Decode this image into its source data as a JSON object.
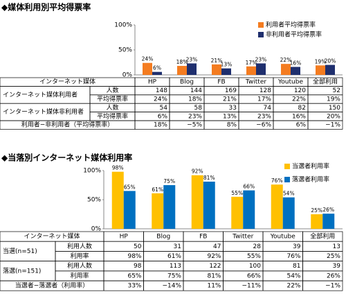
{
  "chart_data": [
    {
      "type": "bar",
      "title": "◆媒体利用別平均得票率",
      "categories": [
        "HP",
        "Blog",
        "FB",
        "Twitter",
        "Youtube",
        "全部利用"
      ],
      "series": [
        {
          "name": "利用者平均得票率",
          "color": "#f47c20",
          "values": [
            24,
            18,
            21,
            17,
            22,
            19
          ],
          "value_labels": [
            "24%",
            "18%",
            "21%",
            "17%",
            "22%",
            "19%"
          ]
        },
        {
          "name": "非利用者平均得票率",
          "color": "#1f2f6e",
          "values": [
            6,
            23,
            13,
            23,
            16,
            20
          ],
          "value_labels": [
            "6%",
            "23%",
            "13%",
            "23%",
            "16%",
            "20%"
          ]
        }
      ],
      "ylim": [
        0,
        100
      ],
      "yticks": [
        {
          "value": 0,
          "label": "0%"
        },
        {
          "value": 50,
          "label": "50%"
        },
        {
          "value": 100,
          "label": "100%"
        }
      ],
      "grid": false,
      "legend": "upper right"
    },
    {
      "type": "bar",
      "title": "◆当落別インターネット媒体利用率",
      "categories": [
        "HP",
        "Blog",
        "FB",
        "Twitter",
        "Youtube",
        "全部利用"
      ],
      "series": [
        {
          "name": "当選者利用率",
          "color": "#ffc000",
          "values": [
            98,
            61,
            92,
            55,
            76,
            25
          ],
          "value_labels": [
            "98%",
            "61%",
            "92%",
            "55%",
            "76%",
            "25%"
          ]
        },
        {
          "name": "落選者利用率",
          "color": "#0070c0",
          "values": [
            65,
            75,
            81,
            66,
            54,
            26
          ],
          "value_labels": [
            "65%",
            "75%",
            "81%",
            "66%",
            "54%",
            "26%"
          ]
        }
      ],
      "ylim": [
        0,
        100
      ],
      "yticks": [
        {
          "value": 0,
          "label": "0%"
        },
        {
          "value": 50,
          "label": "50%"
        },
        {
          "value": 100,
          "label": "100%"
        }
      ],
      "grid": false,
      "legend": "upper right"
    }
  ],
  "tables": [
    {
      "header": [
        "インターネット媒体",
        "HP",
        "Blog",
        "FB",
        "Twitter",
        "Youtube",
        "全部利用"
      ],
      "groups": [
        {
          "label": "インターネット媒体利用者",
          "rows": [
            {
              "label": "人数",
              "cells": [
                "148",
                "144",
                "169",
                "128",
                "120",
                "52"
              ]
            },
            {
              "label": "平均得票率",
              "cells": [
                "24%",
                "18%",
                "21%",
                "17%",
                "22%",
                "19%"
              ]
            }
          ]
        },
        {
          "label": "インターネット媒体非利用者",
          "rows": [
            {
              "label": "人数",
              "cells": [
                "54",
                "58",
                "33",
                "74",
                "82",
                "150"
              ]
            },
            {
              "label": "平均得票率",
              "cells": [
                "6%",
                "23%",
                "13%",
                "23%",
                "16%",
                "20%"
              ]
            }
          ]
        }
      ],
      "footer": {
        "label": "利用者−非利用者（平均得票率）",
        "cells": [
          "18%",
          "−5%",
          "8%",
          "−6%",
          "6%",
          "−1%"
        ]
      }
    },
    {
      "header": [
        "インターネット媒体",
        "HP",
        "Blog",
        "FB",
        "Twitter",
        "Youtube",
        "全部利用"
      ],
      "groups": [
        {
          "label": "当選(n=51)",
          "rows": [
            {
              "label": "利用人数",
              "cells": [
                "50",
                "31",
                "47",
                "28",
                "39",
                "13"
              ]
            },
            {
              "label": "利用率",
              "cells": [
                "98%",
                "61%",
                "92%",
                "55%",
                "76%",
                "25%"
              ]
            }
          ]
        },
        {
          "label": "落選(n=151)",
          "rows": [
            {
              "label": "利用人数",
              "cells": [
                "98",
                "113",
                "122",
                "100",
                "81",
                "39"
              ]
            },
            {
              "label": "利用率",
              "cells": [
                "65%",
                "75%",
                "81%",
                "66%",
                "54%",
                "26%"
              ]
            }
          ]
        }
      ],
      "footer": {
        "label": "当選者−落選者（利用率）",
        "cells": [
          "33%",
          "−14%",
          "11%",
          "−11%",
          "22%",
          "−1%"
        ]
      }
    }
  ]
}
